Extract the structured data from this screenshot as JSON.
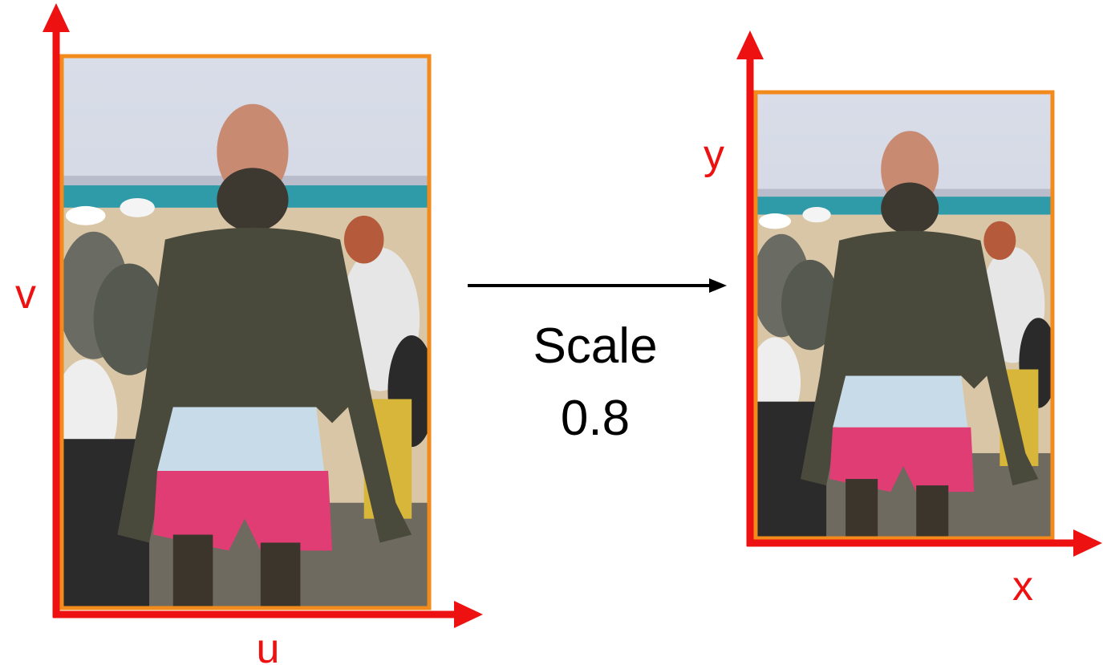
{
  "left_axes": {
    "y_label": "v",
    "x_label": "u"
  },
  "right_axes": {
    "y_label": "y",
    "x_label": "x"
  },
  "transform": {
    "label": "Scale",
    "factor": 0.8
  }
}
